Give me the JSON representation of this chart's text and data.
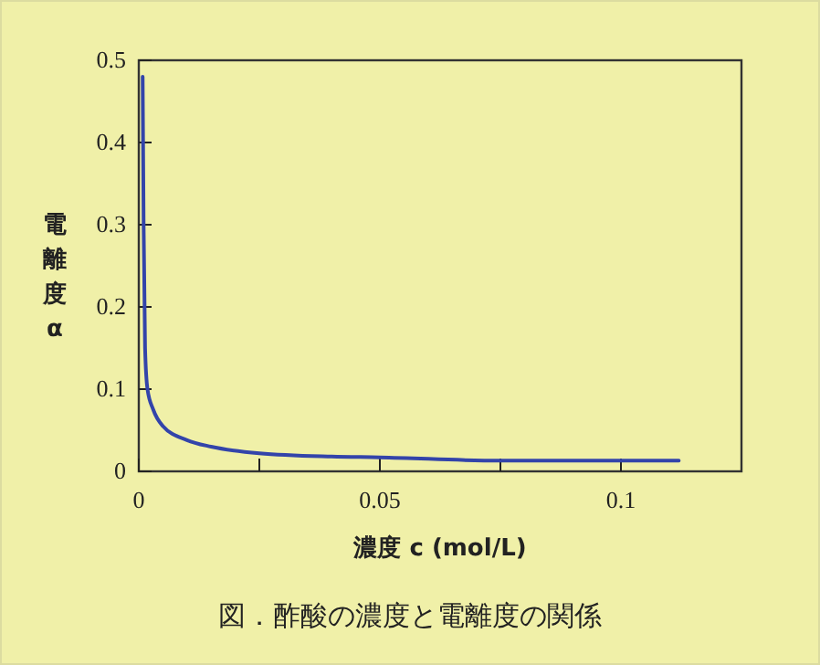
{
  "chart_data": {
    "type": "line",
    "xlabel": "濃度 c (mol/L)",
    "ylabel": "電離度α",
    "annotations": [
      "図．酢酸の濃度と電離度の関係"
    ],
    "x": [
      0.0008,
      0.001,
      0.0013,
      0.0018,
      0.003,
      0.005,
      0.01,
      0.015,
      0.025,
      0.04,
      0.05,
      0.075,
      0.1,
      0.112
    ],
    "series": [
      {
        "color": "#3344aa",
        "values": [
          0.48,
          0.3,
          0.15,
          0.1,
          0.075,
          0.055,
          0.038,
          0.03,
          0.022,
          0.018,
          0.017,
          0.013,
          0.013,
          0.013
        ]
      }
    ],
    "xlim": [
      0,
      0.125
    ],
    "ylim": [
      0,
      0.5
    ],
    "xticks": [
      0,
      {
        "value": 0.025,
        "label": null
      },
      0.05,
      {
        "value": 0.075,
        "label": null
      },
      0.1
    ],
    "yticks": [
      0,
      0.1,
      0.2,
      0.3,
      0.4,
      0.5
    ],
    "grid": false,
    "marker": "none",
    "line_style": "solid"
  }
}
